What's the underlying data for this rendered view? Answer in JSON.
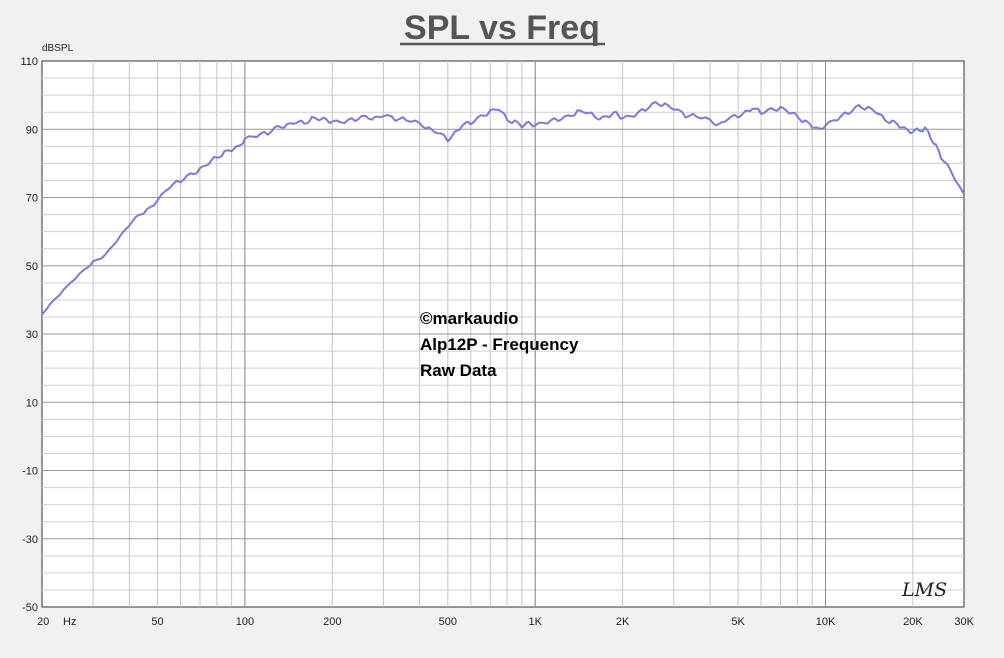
{
  "chart_data": {
    "type": "line",
    "title": "SPL vs Freq",
    "ylabel": "dBSPL",
    "x_scale": "log",
    "xlim": [
      20,
      30000
    ],
    "ylim": [
      -50,
      110
    ],
    "grid": true,
    "x_ticks": [
      {
        "value": 20,
        "label": "20"
      },
      {
        "value": 50,
        "label": "50"
      },
      {
        "value": 100,
        "label": "100"
      },
      {
        "value": 200,
        "label": "200"
      },
      {
        "value": 500,
        "label": "500"
      },
      {
        "value": 1000,
        "label": "1K"
      },
      {
        "value": 2000,
        "label": "2K"
      },
      {
        "value": 5000,
        "label": "5K"
      },
      {
        "value": 10000,
        "label": "10K"
      },
      {
        "value": 20000,
        "label": "20K"
      },
      {
        "value": 30000,
        "label": "30K"
      }
    ],
    "x_unit": "Hz",
    "y_ticks": [
      110,
      90,
      70,
      50,
      30,
      10,
      -10,
      -30,
      -50
    ],
    "annotations": [
      "©markaudio",
      "Alp12P - Frequency",
      "Raw Data"
    ],
    "logo": "LMS",
    "line_color": "#7b7bd6",
    "series": [
      {
        "x": [
          20,
          22,
          25,
          28,
          30,
          33,
          36,
          40,
          43,
          46,
          50,
          55,
          60,
          65,
          70,
          75,
          80,
          85,
          90,
          95,
          100,
          110,
          120,
          130,
          140,
          150,
          160,
          170,
          180,
          190,
          200,
          220,
          240,
          260,
          280,
          300,
          330,
          360,
          400,
          430,
          460,
          500,
          530,
          560,
          600,
          650,
          700,
          750,
          800,
          850,
          900,
          950,
          1000,
          1100,
          1200,
          1300,
          1400,
          1500,
          1600,
          1700,
          1800,
          1900,
          2000,
          2200,
          2400,
          2600,
          2800,
          3000,
          3300,
          3600,
          4000,
          4300,
          4600,
          5000,
          5300,
          5600,
          6000,
          6500,
          7000,
          7500,
          8000,
          8500,
          9000,
          9500,
          10000,
          11000,
          12000,
          13000,
          14000,
          15000,
          16000,
          17000,
          18000,
          19000,
          20000,
          21000,
          22000,
          23000,
          24000,
          25000,
          27000,
          30000
        ],
        "y": [
          36,
          40,
          45,
          49,
          51,
          53,
          57,
          62,
          65,
          66,
          69,
          73,
          75,
          77,
          78,
          80,
          82,
          83,
          84,
          85,
          87,
          88,
          89,
          91,
          91,
          92,
          92,
          93,
          93,
          93,
          92,
          92,
          93,
          94,
          93,
          94,
          93,
          93,
          92,
          90,
          89,
          87,
          89,
          91,
          92,
          94,
          95,
          96,
          93,
          92,
          91,
          92,
          91,
          92,
          93,
          94,
          95,
          95,
          94,
          93,
          94,
          95,
          93,
          94,
          96,
          98,
          97,
          96,
          94,
          94,
          93,
          91,
          93,
          94,
          95,
          96,
          95,
          96,
          96,
          95,
          94,
          92,
          91,
          90,
          91,
          93,
          95,
          97,
          96,
          95,
          93,
          92,
          91,
          90,
          89,
          90,
          90,
          88,
          85,
          82,
          78,
          71
        ]
      }
    ]
  }
}
